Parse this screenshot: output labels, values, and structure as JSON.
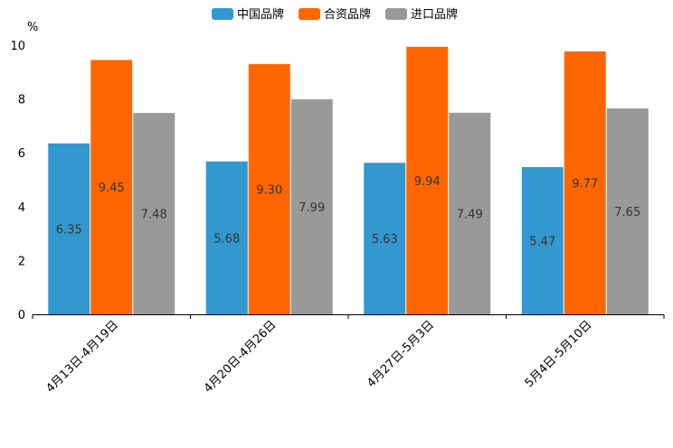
{
  "chart_data": {
    "type": "bar",
    "title": "",
    "xlabel": "",
    "ylabel": "%",
    "ylim": [
      0,
      10
    ],
    "yticks": [
      "0",
      "2",
      "4",
      "6",
      "8",
      "10"
    ],
    "categories": [
      "4月13日-4月19日",
      "4月20日-4月26日",
      "4月27日-5月3日",
      "5月4日-5月10日"
    ],
    "series": [
      {
        "name": "中国品牌",
        "color": "#3498d0",
        "values": [
          6.35,
          5.68,
          5.63,
          5.47
        ],
        "labels": [
          "6.35",
          "5.68",
          "5.63",
          "5.47"
        ]
      },
      {
        "name": "合资品牌",
        "color": "#ff6600",
        "values": [
          9.45,
          9.3,
          9.94,
          9.77
        ],
        "labels": [
          "9.45",
          "9.30",
          "9.94",
          "9.77"
        ]
      },
      {
        "name": "进口品牌",
        "color": "#999999",
        "values": [
          7.48,
          7.99,
          7.49,
          7.65
        ],
        "labels": [
          "7.48",
          "7.99",
          "7.49",
          "7.65"
        ]
      }
    ],
    "legend_position": "top-center",
    "grid": false
  }
}
